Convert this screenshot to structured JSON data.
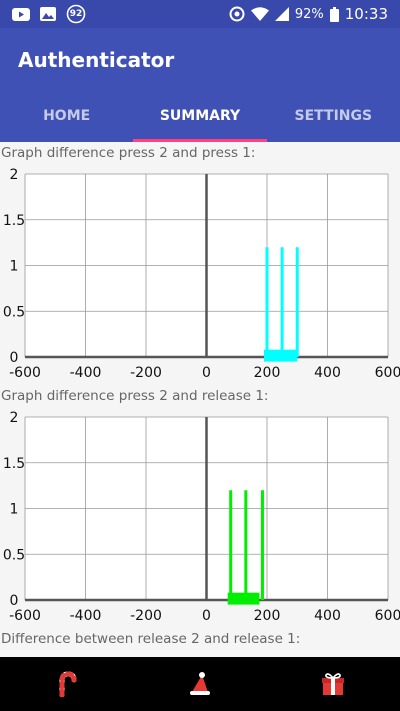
{
  "status_bar": {
    "left_icons": [
      "youtube-icon",
      "image-icon",
      "notification-badge-icon"
    ],
    "badge_count": "92",
    "battery": "92%",
    "time": "10:33",
    "right_icons": [
      "data-saver-icon",
      "wifi-icon",
      "signal-icon",
      "battery-icon"
    ]
  },
  "app": {
    "title": "Authenticator",
    "primary_color": "#3f51b5",
    "accent_color": "#ff4081"
  },
  "tabs": [
    {
      "label": "HOME",
      "active": false
    },
    {
      "label": "SUMMARY",
      "active": true
    },
    {
      "label": "SETTINGS",
      "active": false
    }
  ],
  "graphs": {
    "g1": {
      "label": "Graph difference press 2 and press 1:"
    },
    "g2": {
      "label": "Graph difference press 2 and release 1:"
    },
    "g3": {
      "label": "Difference between release 2 and release 1:"
    }
  },
  "chart_data": [
    {
      "type": "bar",
      "title": "Graph difference press 2 and press 1:",
      "xlim": [
        -600,
        600
      ],
      "ylim": [
        0,
        2
      ],
      "x_ticks": [
        "-600",
        "-400",
        "-200",
        "0",
        "200",
        "400",
        "600"
      ],
      "y_ticks": [
        "0",
        "0.5",
        "1",
        "1.5",
        "2"
      ],
      "grid": true,
      "color": "#00ffff",
      "bars": [
        {
          "x": 200,
          "y": 1.2
        },
        {
          "x": 250,
          "y": 1.2
        },
        {
          "x": 300,
          "y": 1.2
        }
      ],
      "marker": {
        "x_from": 190,
        "x_to": 300,
        "y_from": -0.05,
        "y_to": 0.08
      }
    },
    {
      "type": "bar",
      "title": "Graph difference press 2 and release 1:",
      "xlim": [
        -600,
        600
      ],
      "ylim": [
        0,
        2
      ],
      "x_ticks": [
        "-600",
        "-400",
        "-200",
        "0",
        "200",
        "400",
        "600"
      ],
      "y_ticks": [
        "0",
        "0.5",
        "1",
        "1.5",
        "2"
      ],
      "grid": true,
      "color": "#00ee00",
      "bars": [
        {
          "x": 80,
          "y": 1.2
        },
        {
          "x": 130,
          "y": 1.2
        },
        {
          "x": 185,
          "y": 1.2
        }
      ],
      "marker": {
        "x_from": 70,
        "x_to": 175,
        "y_from": -0.05,
        "y_to": 0.08
      }
    }
  ],
  "nav_bar": {
    "icons": [
      "candy-cane-icon",
      "christmas-hat-icon",
      "gift-icon"
    ]
  }
}
